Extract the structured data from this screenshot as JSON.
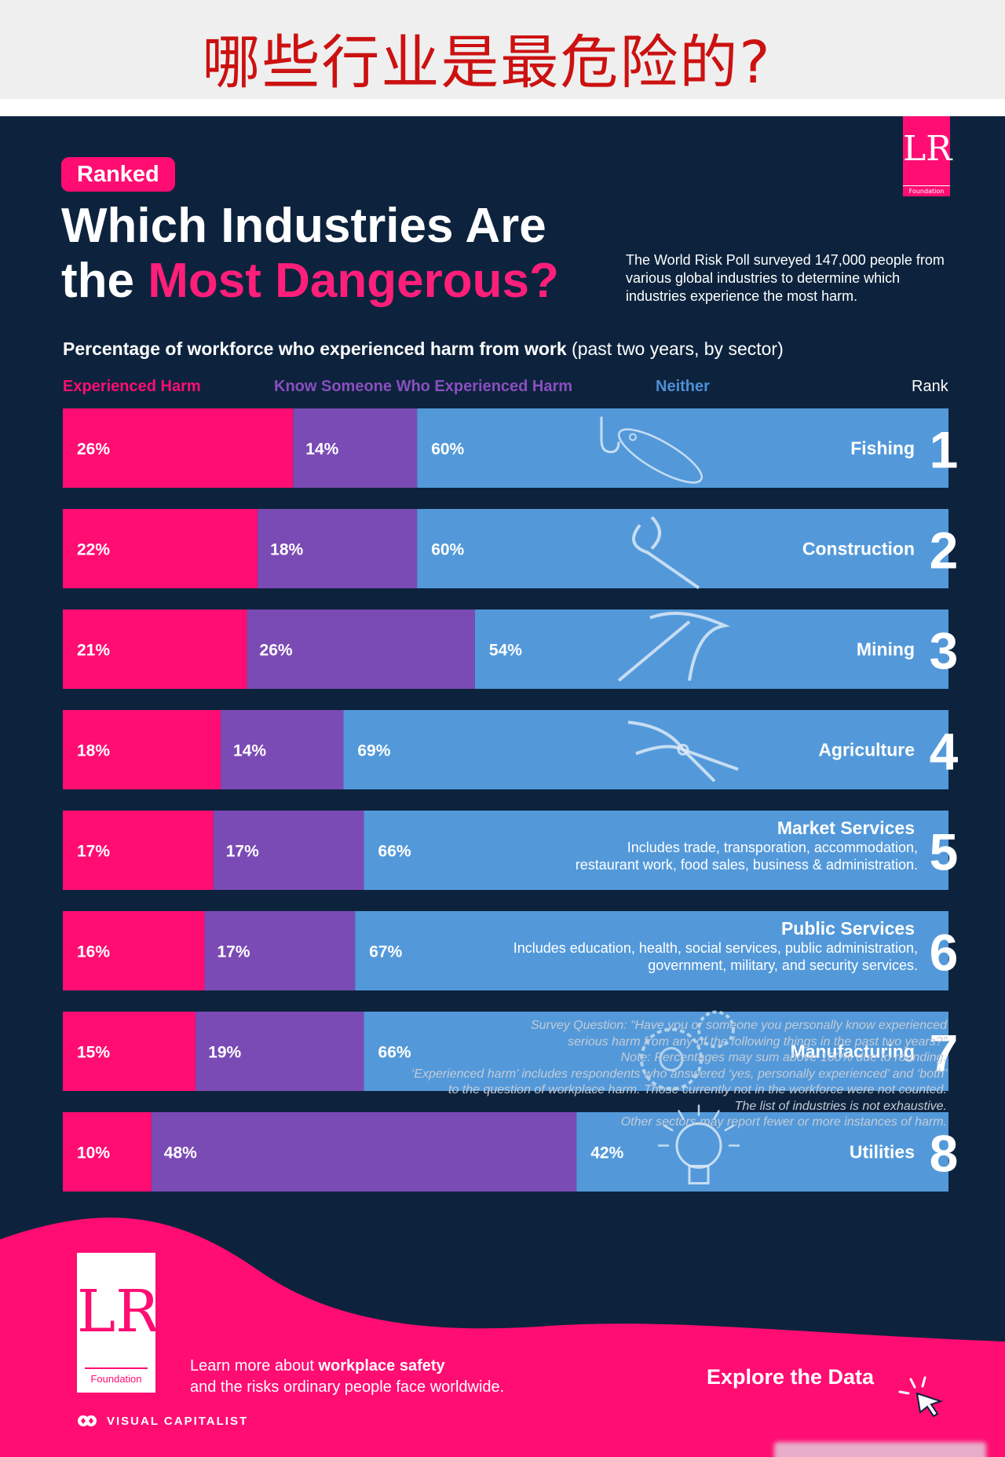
{
  "banner": {
    "title": "哪些行业是最危险的?"
  },
  "header": {
    "logo_text": "LR",
    "logo_sub": "Foundation",
    "ranked_tag": "Ranked",
    "title_line1": "Which Industries Are",
    "title_line2_prefix": "the ",
    "title_line2_accent": "Most Dangerous?",
    "intro": "The World Risk Poll surveyed 147,000 people from various global industries to determine which industries experience the most harm."
  },
  "chart_data": {
    "type": "bar",
    "orientation": "horizontal",
    "stacked": true,
    "title": "Percentage of workforce who experienced harm from work",
    "subtitle": "(past two years, by sector)",
    "legend": [
      "Experienced Harm",
      "Know Someone Who Experienced Harm",
      "Neither"
    ],
    "rank_label": "Rank",
    "colors": {
      "harm": "#ff0d72",
      "know": "#7b4bb5",
      "neither": "#5399da"
    },
    "industries": [
      {
        "rank": "1",
        "name": "Fishing",
        "note": "",
        "harm": 26,
        "know": 14,
        "neither": 60,
        "icon": "fish-hook-icon"
      },
      {
        "rank": "2",
        "name": "Construction",
        "note": "",
        "harm": 22,
        "know": 18,
        "neither": 60,
        "icon": "wrench-icon"
      },
      {
        "rank": "3",
        "name": "Mining",
        "note": "",
        "harm": 21,
        "know": 26,
        "neither": 54,
        "icon": "pickaxe-icon"
      },
      {
        "rank": "4",
        "name": "Agriculture",
        "note": "",
        "harm": 18,
        "know": 14,
        "neither": 69,
        "icon": "pruning-shears-icon"
      },
      {
        "rank": "5",
        "name": "Market Services",
        "note": [
          "Includes trade, transporation, accommodation,",
          "restaurant work, food sales, business & administration."
        ],
        "harm": 17,
        "know": 17,
        "neither": 66,
        "icon": ""
      },
      {
        "rank": "6",
        "name": "Public Services",
        "note": [
          "Includes education, health, social services, public administration,",
          "government, military, and security services."
        ],
        "harm": 16,
        "know": 17,
        "neither": 67,
        "icon": ""
      },
      {
        "rank": "7",
        "name": "Manufacturing",
        "note": "",
        "harm": 15,
        "know": 19,
        "neither": 66,
        "icon": "gears-icon"
      },
      {
        "rank": "8",
        "name": "Utilities",
        "note": "",
        "harm": 10,
        "know": 48,
        "neither": 42,
        "icon": "light-bulb-icon"
      }
    ]
  },
  "footnote": {
    "lines": [
      "Survey Question: “Have you or someone you personally know experienced",
      "serious harm from any of the following things in the past two years?”",
      "Note: Percentages may sum above 100% due to rounding.",
      "‘Experienced harm’ includes respondents who answered ‘yes, personally experienced’ and ‘both’",
      "to the question of workplace harm. Those currently not in the workforce were not counted.",
      "The list of industries is not exhaustive.",
      "Other sectors may report fewer or more instances of harm."
    ]
  },
  "footer": {
    "logo_text": "LR",
    "logo_sub": "Foundation",
    "learn_prefix": "Learn more about ",
    "learn_bold": "workplace safety",
    "learn_line2": "and the risks ordinary people face worldwide.",
    "brand": "VISUAL CAPITALIST",
    "cta": "Explore the Data"
  }
}
